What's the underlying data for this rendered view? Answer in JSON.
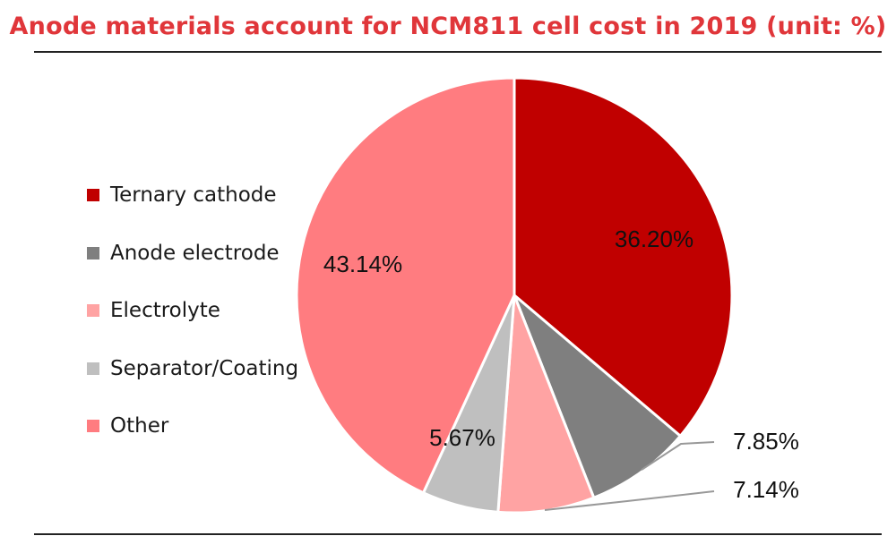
{
  "chart_data": {
    "type": "pie",
    "title": "Anode materials account for NCM811 cell cost in 2019 (unit: %)",
    "legend_position": "left",
    "start": "top",
    "direction": "clockwise",
    "slices": [
      {
        "name": "Ternary cathode",
        "value": 36.2,
        "label": "36.20%",
        "color": "#C00000"
      },
      {
        "name": "Anode electrode",
        "value": 7.85,
        "label": "7.85%",
        "color": "#7F7F7F"
      },
      {
        "name": "Electrolyte",
        "value": 7.14,
        "label": "7.14%",
        "color": "#FFA3A3"
      },
      {
        "name": "Separator/Coating",
        "value": 5.67,
        "label": "5.67%",
        "color": "#BFBFBF"
      },
      {
        "name": "Other",
        "value": 43.14,
        "label": "43.14%",
        "color": "#FF7C80"
      }
    ]
  }
}
